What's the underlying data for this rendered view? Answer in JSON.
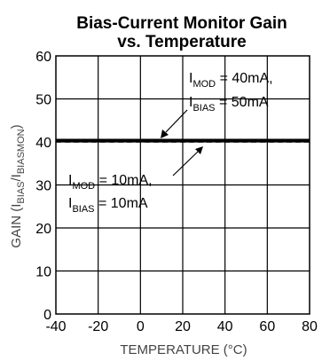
{
  "chart_data": {
    "type": "line",
    "title": [
      "Bias-Current Monitor Gain",
      "vs. Temperature"
    ],
    "xlabel": "TEMPERATURE (°C)",
    "ylabel": {
      "pre": "GAIN (I",
      "sub1": "BIAS",
      "mid": "/I",
      "sub2": "BIASMON",
      "post": ")"
    },
    "xlim": [
      -40,
      80
    ],
    "ylim": [
      0,
      60
    ],
    "xticks": [
      "-40",
      "-20",
      "0",
      "20",
      "40",
      "60",
      "80"
    ],
    "yticks": [
      "0",
      "10",
      "20",
      "30",
      "40",
      "50",
      "60"
    ],
    "grid": true,
    "series": [
      {
        "label_lines": [
          {
            "main": "I",
            "sub": "MOD",
            "rest": " = 40mA,"
          },
          {
            "main": "I",
            "sub": "BIAS",
            "rest": " = 50mA"
          }
        ],
        "style": "solid",
        "x": [
          -40,
          -20,
          0,
          20,
          40,
          60,
          80
        ],
        "y": [
          40.4,
          40.4,
          40.4,
          40.4,
          40.4,
          40.4,
          40.4
        ]
      },
      {
        "label_lines": [
          {
            "main": "I",
            "sub": "MOD",
            "rest": " = 10mA,"
          },
          {
            "main": "I",
            "sub": "BIAS",
            "rest": " = 10mA"
          }
        ],
        "style": "dashed",
        "x": [
          -40,
          -20,
          0,
          20,
          40,
          60,
          80
        ],
        "y": [
          40.0,
          40.0,
          40.0,
          40.0,
          40.0,
          40.0,
          40.0
        ]
      }
    ]
  }
}
